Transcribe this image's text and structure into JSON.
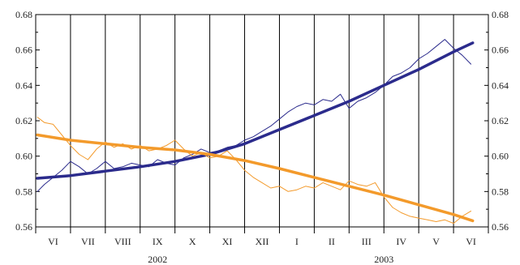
{
  "chart_data": {
    "type": "line",
    "title": "",
    "xlabel": "",
    "ylabel": "",
    "ylim": [
      0.56,
      0.68
    ],
    "yticks": [
      0.56,
      0.58,
      0.6,
      0.62,
      0.64,
      0.66,
      0.68
    ],
    "ytick_labels": [
      "0.56",
      "0.58",
      "0.60",
      "0.62",
      "0.64",
      "0.66",
      "0.68"
    ],
    "months": [
      "VI",
      "VII",
      "VIII",
      "IX",
      "X",
      "XI",
      "XII",
      "I",
      "II",
      "III",
      "IV",
      "V",
      "VI"
    ],
    "years": [
      {
        "label": "2002",
        "first_month": 0,
        "last_month": 6
      },
      {
        "label": "2003",
        "first_month": 7,
        "last_month": 12
      }
    ],
    "grid": "vertical lines at month boundaries",
    "legend": "none",
    "colors": {
      "series_a": "#2b2b8c",
      "series_b": "#f39a2b",
      "grid": "#000000"
    },
    "series": [
      {
        "color": "#2b2b8c",
        "style": "thin",
        "x": [
          0.05,
          0.25,
          0.5,
          0.75,
          1.0,
          1.25,
          1.5,
          1.75,
          2.0,
          2.25,
          2.5,
          2.75,
          3.0,
          3.25,
          3.5,
          3.75,
          4.0,
          4.25,
          4.5,
          4.75,
          5.0,
          5.25,
          5.5,
          5.75,
          6.0,
          6.25,
          6.5,
          6.75,
          7.0,
          7.25,
          7.5,
          7.75,
          8.0,
          8.25,
          8.5,
          8.75,
          9.0,
          9.25,
          9.5,
          9.75,
          10.0,
          10.25,
          10.5,
          10.75,
          11.0,
          11.25,
          11.5,
          11.75,
          12.0,
          12.25,
          12.5
        ],
        "values": [
          0.58,
          0.584,
          0.588,
          0.592,
          0.597,
          0.594,
          0.59,
          0.593,
          0.597,
          0.593,
          0.594,
          0.596,
          0.595,
          0.594,
          0.598,
          0.596,
          0.595,
          0.599,
          0.601,
          0.604,
          0.602,
          0.603,
          0.605,
          0.606,
          0.609,
          0.611,
          0.614,
          0.617,
          0.621,
          0.625,
          0.628,
          0.63,
          0.629,
          0.632,
          0.631,
          0.635,
          0.627,
          0.631,
          0.633,
          0.636,
          0.64,
          0.645,
          0.647,
          0.65,
          0.655,
          0.658,
          0.662,
          0.666,
          0.661,
          0.657,
          0.652
        ]
      },
      {
        "color": "#2b2b8c",
        "style": "trend",
        "x": [
          0.05,
          1.0,
          2.0,
          3.0,
          4.0,
          5.0,
          6.0,
          7.0,
          8.0,
          9.0,
          10.0,
          11.0,
          12.0,
          12.55
        ],
        "values": [
          0.5875,
          0.589,
          0.5915,
          0.594,
          0.597,
          0.601,
          0.607,
          0.615,
          0.623,
          0.631,
          0.64,
          0.649,
          0.659,
          0.664
        ]
      },
      {
        "color": "#f39a2b",
        "style": "thin",
        "x": [
          0.05,
          0.25,
          0.5,
          0.75,
          1.0,
          1.25,
          1.5,
          1.75,
          2.0,
          2.25,
          2.5,
          2.75,
          3.0,
          3.25,
          3.5,
          3.75,
          4.0,
          4.25,
          4.5,
          4.75,
          5.0,
          5.25,
          5.5,
          5.75,
          6.0,
          6.25,
          6.5,
          6.75,
          7.0,
          7.25,
          7.5,
          7.75,
          8.0,
          8.25,
          8.5,
          8.75,
          9.0,
          9.25,
          9.5,
          9.75,
          10.0,
          10.25,
          10.5,
          10.75,
          11.0,
          11.25,
          11.5,
          11.75,
          12.0,
          12.25,
          12.5
        ],
        "values": [
          0.622,
          0.619,
          0.618,
          0.612,
          0.606,
          0.601,
          0.598,
          0.604,
          0.608,
          0.605,
          0.607,
          0.604,
          0.606,
          0.603,
          0.604,
          0.606,
          0.609,
          0.604,
          0.6,
          0.602,
          0.599,
          0.6,
          0.603,
          0.598,
          0.592,
          0.588,
          0.585,
          0.582,
          0.583,
          0.58,
          0.581,
          0.583,
          0.582,
          0.585,
          0.583,
          0.581,
          0.586,
          0.584,
          0.583,
          0.585,
          0.577,
          0.571,
          0.568,
          0.566,
          0.565,
          0.564,
          0.563,
          0.564,
          0.562,
          0.566,
          0.569
        ]
      },
      {
        "color": "#f39a2b",
        "style": "trend",
        "x": [
          0.05,
          1.0,
          2.0,
          3.0,
          4.0,
          5.0,
          6.0,
          7.0,
          8.0,
          9.0,
          10.0,
          11.0,
          12.0,
          12.55
        ],
        "values": [
          0.612,
          0.609,
          0.607,
          0.605,
          0.6035,
          0.601,
          0.5975,
          0.593,
          0.588,
          0.583,
          0.578,
          0.5725,
          0.567,
          0.5635
        ]
      }
    ]
  }
}
